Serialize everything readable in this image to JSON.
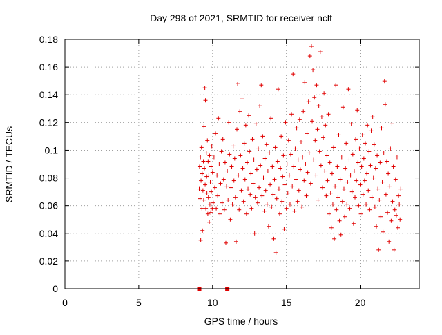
{
  "chart_data": {
    "type": "scatter",
    "title": "Day 298 of 2021, SRMTID for receiver nclf",
    "xlabel": "GPS time / hours",
    "ylabel": "SRMTID / TECUs",
    "xlim": [
      0,
      24
    ],
    "ylim": [
      0,
      0.18
    ],
    "xticks": [
      0,
      5,
      10,
      15,
      20
    ],
    "yticks": [
      0,
      0.02,
      0.04,
      0.06,
      0.08,
      0.1,
      0.12,
      0.14,
      0.16,
      0.18
    ],
    "xtick_labels": [
      "0",
      "5",
      "10",
      "15",
      "20"
    ],
    "ytick_labels": [
      "0",
      "0.02",
      "0.04",
      "0.06",
      "0.08",
      "0.1",
      "0.12",
      "0.14",
      "0.16",
      "0.18"
    ],
    "grid": true,
    "marker": "+",
    "color": "#e00000",
    "zero_markers": [
      9.1,
      11.0
    ],
    "series": [
      {
        "values": [
          [
            9.1,
            0.072
          ],
          [
            9.12,
            0.088
          ],
          [
            9.15,
            0.065
          ],
          [
            9.18,
            0.095
          ],
          [
            9.2,
            0.035
          ],
          [
            9.22,
            0.078
          ],
          [
            9.25,
            0.102
          ],
          [
            9.28,
            0.058
          ],
          [
            9.3,
            0.083
          ],
          [
            9.32,
            0.042
          ],
          [
            9.35,
            0.071
          ],
          [
            9.38,
            0.092
          ],
          [
            9.4,
            0.064
          ],
          [
            9.42,
            0.117
          ],
          [
            9.45,
            0.087
          ],
          [
            9.48,
            0.145
          ],
          [
            9.5,
            0.075
          ],
          [
            9.52,
            0.136
          ],
          [
            9.55,
            0.058
          ],
          [
            9.58,
            0.098
          ],
          [
            9.6,
            0.081
          ],
          [
            9.62,
            0.069
          ],
          [
            9.65,
            0.107
          ],
          [
            9.68,
            0.054
          ],
          [
            9.7,
            0.092
          ],
          [
            9.72,
            0.066
          ],
          [
            9.75,
            0.082
          ],
          [
            9.78,
            0.048
          ],
          [
            9.8,
            0.096
          ],
          [
            9.82,
            0.061
          ],
          [
            9.85,
            0.077
          ],
          [
            9.88,
            0.055
          ],
          [
            9.9,
            0.088
          ],
          [
            9.92,
            0.07
          ],
          [
            9.95,
            0.103
          ],
          [
            9.98,
            0.058
          ],
          [
            10.0,
            0.084
          ],
          [
            10.05,
            0.062
          ],
          [
            10.1,
            0.095
          ],
          [
            10.15,
            0.073
          ],
          [
            10.2,
            0.112
          ],
          [
            10.25,
            0.058
          ],
          [
            10.3,
            0.082
          ],
          [
            10.35,
            0.067
          ],
          [
            10.4,
            0.123
          ],
          [
            10.45,
            0.09
          ],
          [
            10.5,
            0.054
          ],
          [
            10.55,
            0.076
          ],
          [
            10.6,
            0.099
          ],
          [
            10.65,
            0.062
          ],
          [
            10.7,
            0.108
          ],
          [
            10.75,
            0.079
          ],
          [
            10.8,
            0.057
          ],
          [
            10.85,
            0.091
          ],
          [
            10.9,
            0.033
          ],
          [
            10.95,
            0.074
          ],
          [
            11.0,
            0.085
          ],
          [
            11.05,
            0.064
          ],
          [
            11.1,
            0.12
          ],
          [
            11.15,
            0.097
          ],
          [
            11.2,
            0.05
          ],
          [
            11.25,
            0.073
          ],
          [
            11.3,
            0.088
          ],
          [
            11.35,
            0.061
          ],
          [
            11.4,
            0.103
          ],
          [
            11.45,
            0.078
          ],
          [
            11.5,
            0.094
          ],
          [
            11.55,
            0.066
          ],
          [
            11.6,
            0.034
          ],
          [
            11.65,
            0.115
          ],
          [
            11.7,
            0.148
          ],
          [
            11.75,
            0.082
          ],
          [
            11.8,
            0.057
          ],
          [
            11.85,
            0.128
          ],
          [
            11.9,
            0.096
          ],
          [
            11.95,
            0.071
          ],
          [
            12.0,
            0.137
          ],
          [
            12.05,
            0.087
          ],
          [
            12.1,
            0.063
          ],
          [
            12.15,
            0.105
          ],
          [
            12.2,
            0.079
          ],
          [
            12.25,
            0.118
          ],
          [
            12.3,
            0.054
          ],
          [
            12.35,
            0.091
          ],
          [
            12.4,
            0.072
          ],
          [
            12.45,
            0.125
          ],
          [
            12.5,
            0.099
          ],
          [
            12.55,
            0.068
          ],
          [
            12.6,
            0.083
          ],
          [
            12.65,
            0.058
          ],
          [
            12.7,
            0.108
          ],
          [
            12.75,
            0.076
          ],
          [
            12.8,
            0.093
          ],
          [
            12.85,
            0.04
          ],
          [
            12.9,
            0.066
          ],
          [
            12.95,
            0.119
          ],
          [
            13.0,
            0.086
          ],
          [
            13.05,
            0.062
          ],
          [
            13.1,
            0.101
          ],
          [
            13.15,
            0.073
          ],
          [
            13.2,
            0.132
          ],
          [
            13.25,
            0.089
          ],
          [
            13.3,
            0.147
          ],
          [
            13.35,
            0.067
          ],
          [
            13.4,
            0.11
          ],
          [
            13.45,
            0.08
          ],
          [
            13.5,
            0.056
          ],
          [
            13.55,
            0.094
          ],
          [
            13.6,
            0.071
          ],
          [
            13.65,
            0.104
          ],
          [
            13.7,
            0.061
          ],
          [
            13.75,
            0.085
          ],
          [
            13.8,
            0.045
          ],
          [
            13.85,
            0.098
          ],
          [
            13.9,
            0.075
          ],
          [
            13.95,
            0.123
          ],
          [
            14.0,
            0.059
          ],
          [
            14.05,
            0.088
          ],
          [
            14.1,
            0.068
          ],
          [
            14.15,
            0.036
          ],
          [
            14.2,
            0.079
          ],
          [
            14.25,
            0.102
          ],
          [
            14.3,
            0.026
          ],
          [
            14.35,
            0.065
          ],
          [
            14.4,
            0.092
          ],
          [
            14.45,
            0.144
          ],
          [
            14.5,
            0.072
          ],
          [
            14.55,
            0.054
          ],
          [
            14.6,
            0.087
          ],
          [
            14.65,
            0.11
          ],
          [
            14.7,
            0.063
          ],
          [
            14.75,
            0.081
          ],
          [
            14.8,
            0.096
          ],
          [
            14.85,
            0.043
          ],
          [
            14.9,
            0.075
          ],
          [
            14.95,
            0.12
          ],
          [
            15.0,
            0.058
          ],
          [
            15.05,
            0.09
          ],
          [
            15.1,
            0.069
          ],
          [
            15.15,
            0.107
          ],
          [
            15.2,
            0.082
          ],
          [
            15.25,
            0.061
          ],
          [
            15.3,
            0.097
          ],
          [
            15.35,
            0.126
          ],
          [
            15.4,
            0.074
          ],
          [
            15.45,
            0.155
          ],
          [
            15.5,
            0.088
          ],
          [
            15.55,
            0.056
          ],
          [
            15.6,
            0.101
          ],
          [
            15.65,
            0.079
          ],
          [
            15.7,
            0.116
          ],
          [
            15.75,
            0.063
          ],
          [
            15.8,
            0.093
          ],
          [
            15.85,
            0.071
          ],
          [
            15.9,
            0.122
          ],
          [
            15.95,
            0.086
          ],
          [
            16.0,
            0.106
          ],
          [
            16.05,
            0.059
          ],
          [
            16.1,
            0.095
          ],
          [
            16.15,
            0.128
          ],
          [
            16.2,
            0.078
          ],
          [
            16.25,
            0.149
          ],
          [
            16.3,
            0.09
          ],
          [
            16.35,
            0.067
          ],
          [
            16.4,
            0.112
          ],
          [
            16.45,
            0.084
          ],
          [
            16.5,
            0.135
          ],
          [
            16.55,
            0.098
          ],
          [
            16.6,
            0.168
          ],
          [
            16.65,
            0.076
          ],
          [
            16.7,
            0.175
          ],
          [
            16.75,
            0.121
          ],
          [
            16.8,
            0.158
          ],
          [
            16.85,
            0.093
          ],
          [
            16.9,
            0.138
          ],
          [
            16.95,
            0.107
          ],
          [
            17.0,
            0.082
          ],
          [
            17.05,
            0.147
          ],
          [
            17.1,
            0.115
          ],
          [
            17.15,
            0.064
          ],
          [
            17.2,
            0.132
          ],
          [
            17.25,
            0.099
          ],
          [
            17.3,
            0.171
          ],
          [
            17.35,
            0.089
          ],
          [
            17.4,
            0.124
          ],
          [
            17.45,
            0.073
          ],
          [
            17.5,
            0.109
          ],
          [
            17.55,
            0.141
          ],
          [
            17.6,
            0.085
          ],
          [
            17.65,
            0.118
          ],
          [
            17.7,
            0.067
          ],
          [
            17.75,
            0.096
          ],
          [
            17.8,
            0.078
          ],
          [
            17.85,
            0.126
          ],
          [
            17.9,
            0.054
          ],
          [
            17.95,
            0.091
          ],
          [
            18.0,
            0.069
          ],
          [
            18.05,
            0.044
          ],
          [
            18.1,
            0.083
          ],
          [
            18.15,
            0.061
          ],
          [
            18.2,
            0.102
          ],
          [
            18.25,
            0.036
          ],
          [
            18.3,
            0.074
          ],
          [
            18.35,
            0.147
          ],
          [
            18.4,
            0.057
          ],
          [
            18.45,
            0.088
          ],
          [
            18.5,
            0.066
          ],
          [
            18.55,
            0.111
          ],
          [
            18.6,
            0.049
          ],
          [
            18.65,
            0.079
          ],
          [
            18.7,
            0.039
          ],
          [
            18.75,
            0.095
          ],
          [
            18.8,
            0.063
          ],
          [
            18.85,
            0.131
          ],
          [
            18.9,
            0.072
          ],
          [
            18.95,
            0.052
          ],
          [
            19.0,
            0.087
          ],
          [
            19.05,
            0.105
          ],
          [
            19.1,
            0.061
          ],
          [
            19.15,
            0.077
          ],
          [
            19.2,
            0.144
          ],
          [
            19.25,
            0.093
          ],
          [
            19.3,
            0.058
          ],
          [
            19.35,
            0.082
          ],
          [
            19.4,
            0.119
          ],
          [
            19.45,
            0.07
          ],
          [
            19.5,
            0.097
          ],
          [
            19.55,
            0.047
          ],
          [
            19.6,
            0.085
          ],
          [
            19.65,
            0.066
          ],
          [
            19.7,
            0.108
          ],
          [
            19.75,
            0.078
          ],
          [
            19.8,
            0.129
          ],
          [
            19.85,
            0.091
          ],
          [
            19.9,
            0.06
          ],
          [
            19.95,
            0.101
          ],
          [
            20.0,
            0.075
          ],
          [
            20.05,
            0.054
          ],
          [
            20.1,
            0.088
          ],
          [
            20.15,
            0.111
          ],
          [
            20.2,
            0.068
          ],
          [
            20.25,
            0.094
          ],
          [
            20.3,
            0.078
          ],
          [
            20.35,
            0.105
          ],
          [
            20.4,
            0.061
          ],
          [
            20.45,
            0.083
          ],
          [
            20.5,
            0.118
          ],
          [
            20.55,
            0.071
          ],
          [
            20.6,
            0.099
          ],
          [
            20.65,
            0.057
          ],
          [
            20.7,
            0.089
          ],
          [
            20.75,
            0.114
          ],
          [
            20.8,
            0.066
          ],
          [
            20.85,
            0.124
          ],
          [
            20.9,
            0.08
          ],
          [
            20.95,
            0.104
          ],
          [
            21.0,
            0.059
          ],
          [
            21.05,
            0.087
          ],
          [
            21.1,
            0.045
          ],
          [
            21.15,
            0.096
          ],
          [
            21.2,
            0.072
          ],
          [
            21.25,
            0.028
          ],
          [
            21.3,
            0.064
          ],
          [
            21.35,
            0.091
          ],
          [
            21.4,
            0.052
          ],
          [
            21.45,
            0.116
          ],
          [
            21.5,
            0.077
          ],
          [
            21.55,
            0.041
          ],
          [
            21.6,
            0.098
          ],
          [
            21.65,
            0.15
          ],
          [
            21.7,
            0.133
          ],
          [
            21.75,
            0.068
          ],
          [
            21.8,
            0.092
          ],
          [
            21.85,
            0.055
          ],
          [
            21.9,
            0.083
          ],
          [
            21.95,
            0.034
          ],
          [
            22.0,
            0.074
          ],
          [
            22.05,
            0.101
          ],
          [
            22.1,
            0.049
          ],
          [
            22.15,
            0.119
          ],
          [
            22.2,
            0.063
          ],
          [
            22.25,
            0.088
          ],
          [
            22.3,
            0.028
          ],
          [
            22.35,
            0.057
          ],
          [
            22.4,
            0.079
          ],
          [
            22.45,
            0.053
          ],
          [
            22.5,
            0.095
          ],
          [
            22.55,
            0.044
          ],
          [
            22.6,
            0.067
          ],
          [
            22.65,
            0.061
          ],
          [
            22.7,
            0.05
          ],
          [
            22.75,
            0.072
          ]
        ]
      }
    ]
  }
}
